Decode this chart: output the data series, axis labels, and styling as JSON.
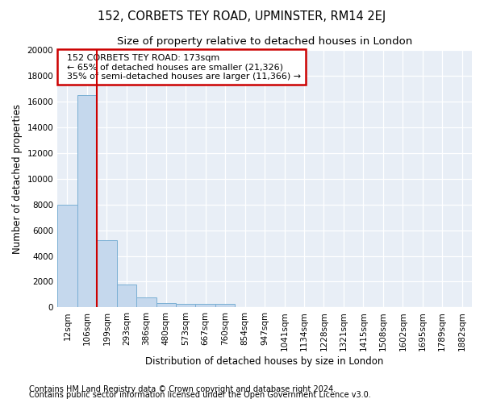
{
  "title_main": "152, CORBETS TEY ROAD, UPMINSTER, RM14 2EJ",
  "title_sub": "Size of property relative to detached houses in London",
  "xlabel": "Distribution of detached houses by size in London",
  "ylabel": "Number of detached properties",
  "categories": [
    "12sqm",
    "106sqm",
    "199sqm",
    "293sqm",
    "386sqm",
    "480sqm",
    "573sqm",
    "667sqm",
    "760sqm",
    "854sqm",
    "947sqm",
    "1041sqm",
    "1134sqm",
    "1228sqm",
    "1321sqm",
    "1415sqm",
    "1508sqm",
    "1602sqm",
    "1695sqm",
    "1789sqm",
    "1882sqm"
  ],
  "values": [
    8000,
    16500,
    5200,
    1800,
    800,
    350,
    300,
    300,
    300,
    0,
    0,
    0,
    0,
    0,
    0,
    0,
    0,
    0,
    0,
    0,
    0
  ],
  "bar_color": "#c5d8ed",
  "bar_edge_color": "#7aafd4",
  "vline_color": "#cc0000",
  "vline_x": 1.5,
  "annotation_line1": "152 CORBETS TEY ROAD: 173sqm",
  "annotation_line2": "← 65% of detached houses are smaller (21,326)",
  "annotation_line3": "35% of semi-detached houses are larger (11,366) →",
  "ylim": [
    0,
    20000
  ],
  "yticks": [
    0,
    2000,
    4000,
    6000,
    8000,
    10000,
    12000,
    14000,
    16000,
    18000,
    20000
  ],
  "footnote1": "Contains HM Land Registry data © Crown copyright and database right 2024.",
  "footnote2": "Contains public sector information licensed under the Open Government Licence v3.0.",
  "bg_color": "#ffffff",
  "plot_bg_color": "#e8eef6",
  "title_main_fontsize": 10.5,
  "title_sub_fontsize": 9.5,
  "axis_label_fontsize": 8.5,
  "tick_fontsize": 7.5,
  "annotation_fontsize": 8,
  "footnote_fontsize": 7
}
